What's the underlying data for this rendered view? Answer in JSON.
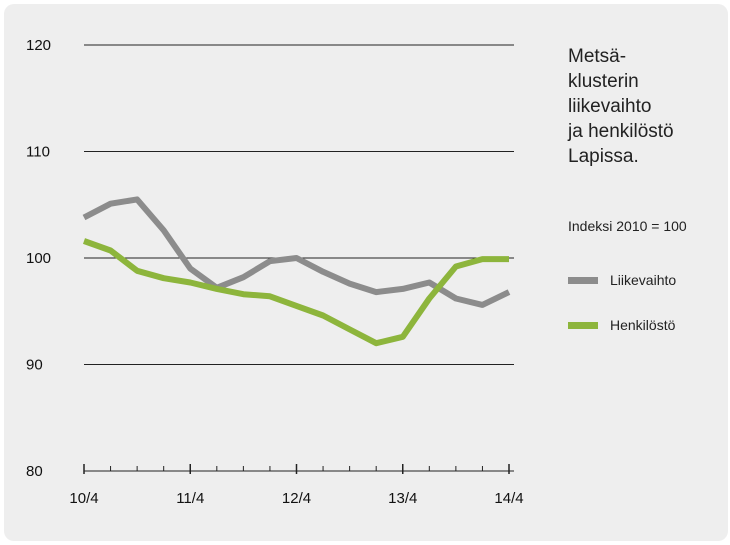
{
  "chart_data": {
    "type": "line",
    "title": "Metsä-\nklusterin\nliikevaihto\nja henkilöstö\nLapissa.",
    "subtitle": "Indeksi 2010 = 100",
    "ylim": [
      80,
      120
    ],
    "yticks": [
      80,
      90,
      100,
      110,
      120
    ],
    "xlim": [
      0,
      16
    ],
    "xticks": [
      0,
      4,
      8,
      12,
      16
    ],
    "xtick_labels": [
      "10/4",
      "11/4",
      "12/4",
      "13/4",
      "14/4"
    ],
    "x": [
      0,
      1,
      2,
      3,
      4,
      5,
      6,
      7,
      8,
      9,
      10,
      11,
      12,
      13,
      14,
      15,
      16
    ],
    "series": [
      {
        "name": "Liikevaihto",
        "color": "#8c8c8c",
        "values": [
          103.8,
          105.1,
          105.5,
          102.6,
          99.0,
          97.2,
          98.2,
          99.7,
          100.0,
          98.7,
          97.6,
          96.8,
          97.1,
          97.7,
          96.2,
          95.6,
          96.8
        ]
      },
      {
        "name": "Henkilöstö",
        "color": "#8db53c",
        "values": [
          101.6,
          100.7,
          98.8,
          98.1,
          97.7,
          97.1,
          96.6,
          96.4,
          95.5,
          94.6,
          93.3,
          92.0,
          92.6,
          96.2,
          99.2,
          99.9,
          99.9
        ]
      }
    ],
    "grid": "horizontal",
    "legend_position": "right"
  }
}
